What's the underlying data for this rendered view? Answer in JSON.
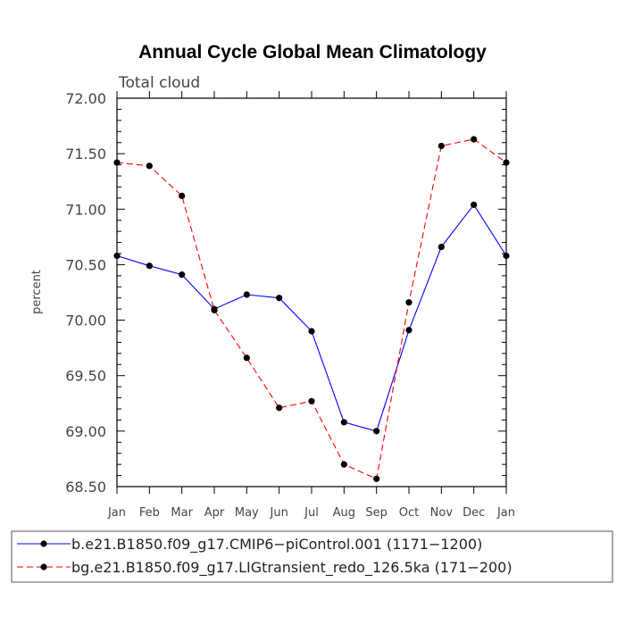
{
  "chart_data": {
    "type": "line",
    "title": "Annual Cycle Global Mean Climatology",
    "subtitle": "Total cloud",
    "xlabel": "",
    "ylabel": "percent",
    "categories": [
      "Jan",
      "Feb",
      "Mar",
      "Apr",
      "May",
      "Jun",
      "Jul",
      "Aug",
      "Sep",
      "Oct",
      "Nov",
      "Dec",
      "Jan"
    ],
    "ylim": [
      68.5,
      72.0
    ],
    "yticks": [
      "68.50",
      "69.00",
      "69.50",
      "70.00",
      "70.50",
      "71.00",
      "71.50",
      "72.00"
    ],
    "grid": false,
    "legend_position": "bottom",
    "series": [
      {
        "name": "b.e21.B1850.f09_g17.CMIP6−piControl.001 (1171−1200)",
        "color": "#0000ff",
        "line_style": "solid",
        "values": [
          70.58,
          70.49,
          70.41,
          70.1,
          70.23,
          70.2,
          69.9,
          69.08,
          69.0,
          69.91,
          70.66,
          71.04,
          70.58
        ]
      },
      {
        "name": "bg.e21.B1850.f09_g17.LIGtransient_redo_126.5ka (171−200)",
        "color": "#ff0000",
        "line_style": "dashed",
        "values": [
          71.42,
          71.39,
          71.12,
          70.09,
          69.66,
          69.21,
          69.27,
          68.7,
          68.57,
          70.16,
          71.57,
          71.63,
          71.42
        ]
      }
    ]
  }
}
